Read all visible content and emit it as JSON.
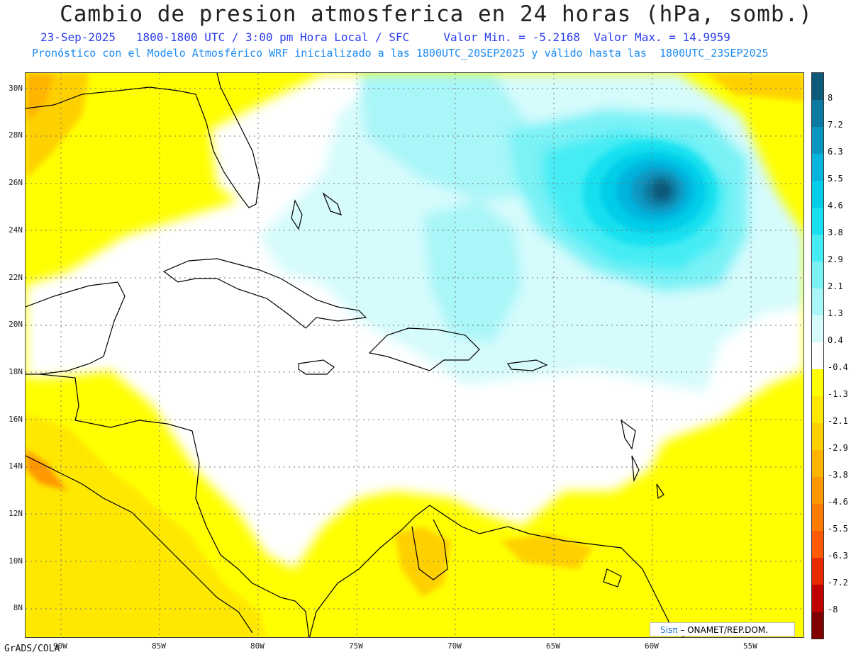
{
  "header": {
    "title": "Cambio de presion atmosferica en 24 horas (hPa, somb.)",
    "subtitle_1": "23-Sep-2025   1800-1800 UTC / 3:00 pm Hora Local / SFC     Valor Min. = -5.2168  Valor Max. = 14.9959",
    "subtitle_2": "Pronóstico con el Modelo Atmosférico WRF inicializado a las 1800UTC_20SEP2025 y válido hasta las  1800UTC_23SEP2025"
  },
  "map": {
    "lat_labels": [
      "30N",
      "28N",
      "26N",
      "24N",
      "22N",
      "20N",
      "18N",
      "16N",
      "14N",
      "12N",
      "10N",
      "8N"
    ],
    "lon_labels": [
      "90W",
      "85W",
      "80W",
      "75W",
      "70W",
      "65W",
      "60W",
      "55W"
    ],
    "field_extremes": {
      "min": -5.2168,
      "max": 14.9959
    }
  },
  "colorbar": {
    "labels": [
      "8",
      "7.2",
      "6.3",
      "5.5",
      "4.6",
      "3.8",
      "2.9",
      "2.1",
      "1.3",
      "0.4",
      "-0.4",
      "-1.3",
      "-2.1",
      "-2.9",
      "-3.8",
      "-4.6",
      "-5.5",
      "-6.3",
      "-7.2",
      "-8"
    ],
    "colors": [
      "#0d5a7a",
      "#0a7aa0",
      "#0896c0",
      "#06b4de",
      "#00cde8",
      "#19e0f0",
      "#45ecf4",
      "#7af2f6",
      "#a8f6f8",
      "#d6fbfc",
      "#ffffff",
      "#ffff00",
      "#ffe800",
      "#ffd000",
      "#ffb400",
      "#ff9800",
      "#ff7a00",
      "#ff5a00",
      "#e82a00",
      "#c00000",
      "#800000"
    ]
  },
  "footer": {
    "software": "GrADS/COLA",
    "credit_logo": "Sisπ",
    "credit_text": " – ONAMET/REP.DOM."
  }
}
